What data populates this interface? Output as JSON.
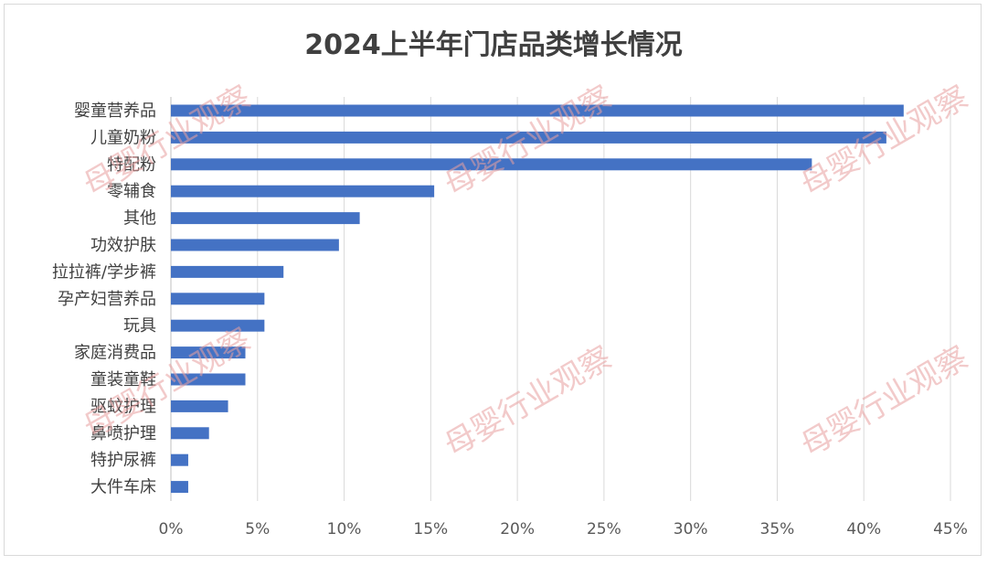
{
  "chart_data": {
    "type": "bar",
    "orientation": "horizontal",
    "title": "2024上半年门店品类增长情况",
    "categories": [
      "婴童营养品",
      "儿童奶粉",
      "特配粉",
      "零辅食",
      "其他",
      "功效护肤",
      "拉拉裤/学步裤",
      "孕产妇营养品",
      "玩具",
      "家庭消费品",
      "童装童鞋",
      "驱蚊护理",
      "鼻喷护理",
      "特护尿裤",
      "大件车床"
    ],
    "values": [
      0.423,
      0.413,
      0.37,
      0.152,
      0.109,
      0.097,
      0.065,
      0.054,
      0.054,
      0.043,
      0.043,
      0.033,
      0.022,
      0.01,
      0.01
    ],
    "xlim": [
      0,
      0.45
    ],
    "xticks": [
      "0%",
      "5%",
      "10%",
      "15%",
      "20%",
      "25%",
      "30%",
      "35%",
      "40%",
      "45%"
    ],
    "grid": true,
    "bar_color": "#4472c4"
  },
  "watermark": "母婴行业观察"
}
